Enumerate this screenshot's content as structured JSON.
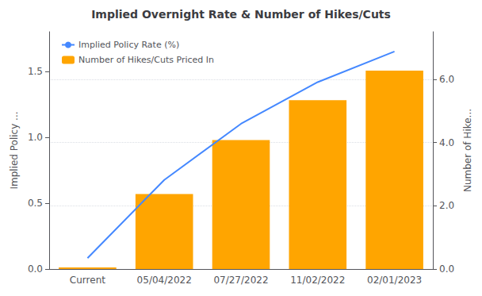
{
  "chart_data": {
    "type": "bar",
    "title": "Implied Overnight Rate & Number of Hikes/Cuts",
    "categories": [
      "Current",
      "05/04/2022",
      "07/27/2022",
      "11/02/2022",
      "02/01/2023"
    ],
    "series": [
      {
        "name": "Implied Policy Rate (%)",
        "type": "line",
        "color": "#4488FF",
        "values": [
          0.083,
          0.676,
          1.102,
          1.418,
          1.65
        ]
      },
      {
        "name": "Number of Hikes/Cuts Priced In",
        "type": "bar",
        "color": "#FFA500",
        "axis": "y2",
        "values": [
          0.05,
          2.372,
          4.077,
          5.338,
          6.269
        ]
      }
    ],
    "ylabel": "Implied Policy ...",
    "y2label": "Number of Hike...",
    "ylim": [
      0,
      1.8
    ],
    "yticks": [
      {
        "value": 0,
        "label": "0.0"
      },
      {
        "value": 0.5,
        "label": "0.5"
      },
      {
        "value": 1.0,
        "label": "1.0"
      },
      {
        "value": 1.5,
        "label": "1.5"
      }
    ],
    "y2lim": [
      0,
      7.5
    ],
    "y2ticks": [
      {
        "value": 0,
        "label": "0.0"
      },
      {
        "value": 2.0,
        "label": "2.0"
      },
      {
        "value": 4.0,
        "label": "4.0"
      },
      {
        "value": 6.0,
        "label": "6.0"
      }
    ],
    "grid": true,
    "legend": "upper left"
  }
}
